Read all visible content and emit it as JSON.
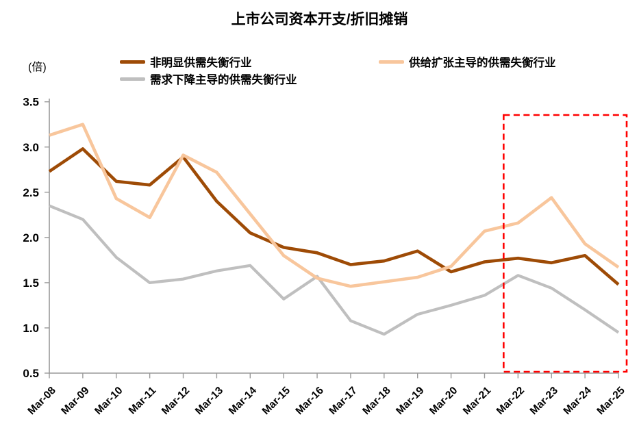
{
  "chart": {
    "title": "上市公司资本开支/折旧摊销",
    "unit_label": "(倍)",
    "legend": [
      {
        "label": "非明显供需失衡行业",
        "color": "#9E4B06"
      },
      {
        "label": "供给扩张主导的供需失衡行业",
        "color": "#F8C69C"
      },
      {
        "label": "需求下降主导的供需失衡行业",
        "color": "#BFBFBF"
      }
    ]
  },
  "chart_data": {
    "type": "line",
    "title": "上市公司资本开支/折旧摊销",
    "ylabel": "(倍)",
    "xlabel": "",
    "categories": [
      "Mar-08",
      "Mar-09",
      "Mar-10",
      "Mar-11",
      "Mar-12",
      "Mar-13",
      "Mar-14",
      "Mar-15",
      "Mar-16",
      "Mar-17",
      "Mar-18",
      "Mar-19",
      "Mar-20",
      "Mar-21",
      "Mar-22",
      "Mar-23",
      "Mar-24",
      "Mar-25"
    ],
    "series": [
      {
        "name": "非明显供需失衡行业",
        "color": "#9E4B06",
        "values": [
          2.73,
          2.98,
          2.62,
          2.58,
          2.89,
          2.4,
          2.05,
          1.89,
          1.83,
          1.7,
          1.74,
          1.85,
          1.62,
          1.73,
          1.77,
          1.72,
          1.8,
          1.48
        ]
      },
      {
        "name": "供给扩张主导的供需失衡行业",
        "color": "#F8C69C",
        "values": [
          3.13,
          3.25,
          2.43,
          2.22,
          2.91,
          2.72,
          2.26,
          1.8,
          1.55,
          1.46,
          1.51,
          1.56,
          1.68,
          2.07,
          2.16,
          2.44,
          1.93,
          1.67
        ]
      },
      {
        "name": "需求下降主导的供需失衡行业",
        "color": "#BFBFBF",
        "values": [
          2.35,
          2.2,
          1.78,
          1.5,
          1.54,
          1.63,
          1.69,
          1.32,
          1.57,
          1.08,
          0.93,
          1.15,
          1.25,
          1.36,
          1.58,
          1.44,
          1.2,
          0.95
        ]
      }
    ],
    "ylim": [
      0.5,
      3.5
    ],
    "yticks": [
      "0.5",
      "1.0",
      "1.5",
      "2.0",
      "2.5",
      "3.0",
      "3.5"
    ],
    "grid": false,
    "legend_position": "top",
    "axis_color": "#999999",
    "highlight_box": {
      "from": "Mar-22",
      "to": "Mar-25",
      "color": "#FF0000",
      "style": "dashed"
    }
  }
}
